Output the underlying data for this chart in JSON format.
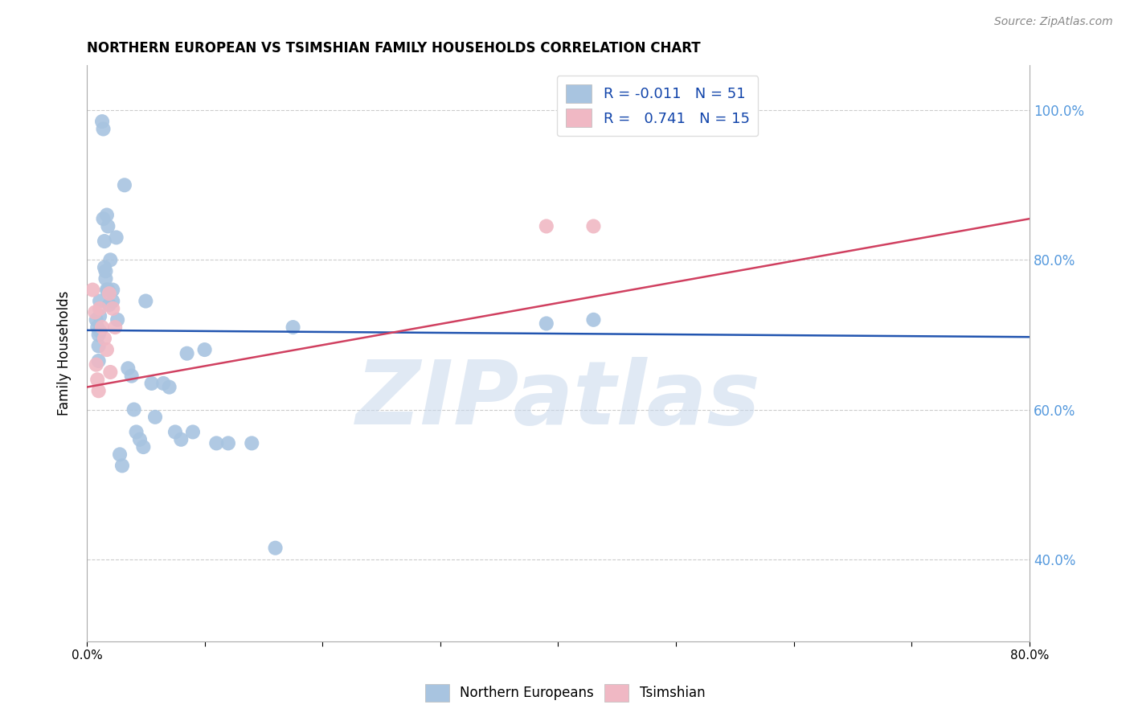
{
  "title": "NORTHERN EUROPEAN VS TSIMSHIAN FAMILY HOUSEHOLDS CORRELATION CHART",
  "source": "Source: ZipAtlas.com",
  "ylabel": "Family Households",
  "xlim": [
    0.0,
    0.8
  ],
  "ylim": [
    0.29,
    1.06
  ],
  "xticks": [
    0.0,
    0.1,
    0.2,
    0.3,
    0.4,
    0.5,
    0.6,
    0.7,
    0.8
  ],
  "xtick_labels_show": [
    true,
    false,
    false,
    false,
    false,
    false,
    false,
    false,
    true
  ],
  "yticks": [
    0.4,
    0.6,
    0.8,
    1.0
  ],
  "watermark": "ZIPatlas",
  "legend_r1_label": "R = -0.011   N = 51",
  "legend_r2_label": "R =   0.741   N = 15",
  "blue_scatter_color": "#a8c4e0",
  "pink_scatter_color": "#f0b8c4",
  "blue_line_color": "#2255b0",
  "pink_line_color": "#d04060",
  "legend_blue_color": "#a8c4e0",
  "legend_pink_color": "#f0b8c4",
  "ne_scatter_x": [
    0.008,
    0.009,
    0.01,
    0.01,
    0.01,
    0.011,
    0.011,
    0.011,
    0.013,
    0.014,
    0.014,
    0.015,
    0.015,
    0.016,
    0.016,
    0.017,
    0.017,
    0.018,
    0.018,
    0.019,
    0.02,
    0.022,
    0.022,
    0.025,
    0.026,
    0.028,
    0.03,
    0.032,
    0.035,
    0.038,
    0.04,
    0.042,
    0.045,
    0.048,
    0.05,
    0.055,
    0.058,
    0.065,
    0.07,
    0.075,
    0.08,
    0.085,
    0.09,
    0.1,
    0.11,
    0.12,
    0.14,
    0.16,
    0.175,
    0.39,
    0.43
  ],
  "ne_scatter_y": [
    0.72,
    0.71,
    0.7,
    0.685,
    0.665,
    0.745,
    0.725,
    0.705,
    0.985,
    0.975,
    0.855,
    0.825,
    0.79,
    0.785,
    0.775,
    0.76,
    0.86,
    0.845,
    0.76,
    0.74,
    0.8,
    0.76,
    0.745,
    0.83,
    0.72,
    0.54,
    0.525,
    0.9,
    0.655,
    0.645,
    0.6,
    0.57,
    0.56,
    0.55,
    0.745,
    0.635,
    0.59,
    0.635,
    0.63,
    0.57,
    0.56,
    0.675,
    0.57,
    0.68,
    0.555,
    0.555,
    0.555,
    0.415,
    0.71,
    0.715,
    0.72
  ],
  "ts_scatter_x": [
    0.005,
    0.007,
    0.008,
    0.009,
    0.01,
    0.011,
    0.013,
    0.015,
    0.017,
    0.019,
    0.02,
    0.022,
    0.024,
    0.39,
    0.43
  ],
  "ts_scatter_y": [
    0.76,
    0.73,
    0.66,
    0.64,
    0.625,
    0.735,
    0.71,
    0.695,
    0.68,
    0.755,
    0.65,
    0.735,
    0.71,
    0.845,
    0.845
  ],
  "ne_line_x": [
    0.0,
    0.8
  ],
  "ne_line_y": [
    0.706,
    0.697
  ],
  "ts_line_x": [
    0.0,
    0.8
  ],
  "ts_line_y": [
    0.63,
    0.855
  ],
  "grid_color": "#cccccc",
  "right_tick_color": "#5599dd",
  "axis_color": "#aaaaaa"
}
